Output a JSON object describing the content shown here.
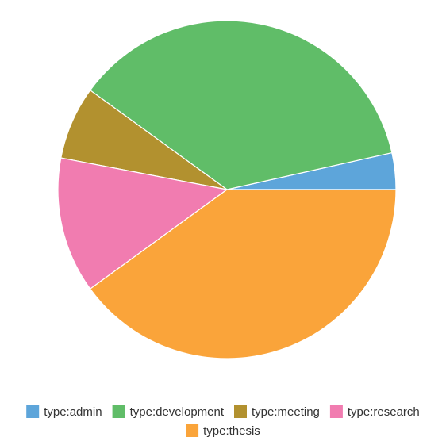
{
  "chart_data": {
    "type": "pie",
    "title": "",
    "legend_position": "bottom",
    "slices": [
      {
        "label": "type:admin",
        "value": 3.5,
        "color": "#5DA5DA"
      },
      {
        "label": "type:development",
        "value": 36.5,
        "color": "#60BD68"
      },
      {
        "label": "type:meeting",
        "value": 7.0,
        "color": "#B2912F"
      },
      {
        "label": "type:research",
        "value": 13.0,
        "color": "#F17CB0"
      },
      {
        "label": "type:thesis",
        "value": 40.0,
        "color": "#FAA43A"
      }
    ]
  }
}
